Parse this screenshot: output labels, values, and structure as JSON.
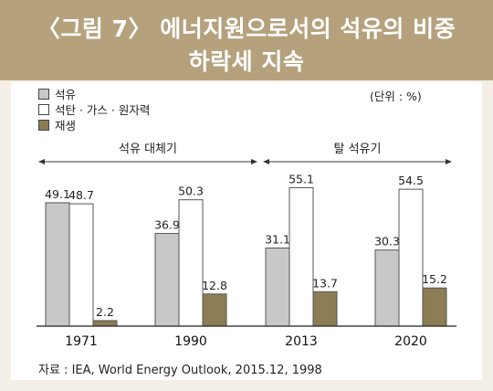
{
  "header": {
    "title_line1": "〈그림 7〉 에너지원으로서의 석유의 비중",
    "title_line2": "하락세 지속"
  },
  "unit": "(단위 : %)",
  "source": "자료 : IEA, World Energy Outlook, 2015.12, 1998",
  "colors": {
    "header_bg": "#b5a27d",
    "oil": "#c8c8c8",
    "coal_gas_nuclear": "#ffffff",
    "renewable": "#8c7d55"
  },
  "chart_data": {
    "type": "bar",
    "categories": [
      "1971",
      "1990",
      "2013",
      "2020"
    ],
    "series": [
      {
        "name": "석유",
        "values": [
          49.1,
          36.9,
          31.1,
          30.3
        ]
      },
      {
        "name": "석탄 · 가스 · 원자력",
        "values": [
          48.7,
          50.3,
          55.1,
          54.5
        ]
      },
      {
        "name": "재생",
        "values": [
          2.2,
          12.8,
          13.7,
          15.2
        ]
      }
    ],
    "value_labels": [
      [
        "49.1",
        "48.7",
        "2.2"
      ],
      [
        "36.9",
        "50.3",
        "12.8"
      ],
      [
        "31.1",
        "55.1",
        "13.7"
      ],
      [
        "30.3",
        "54.5",
        "15.2"
      ]
    ],
    "ylim": [
      0,
      60
    ],
    "grid": false,
    "legend": "top-left",
    "annotations": [
      {
        "text": "석유 대체기",
        "from": "1971",
        "to": "1990"
      },
      {
        "text": "탈 석유기",
        "from": "2013",
        "to": "2020"
      }
    ]
  }
}
